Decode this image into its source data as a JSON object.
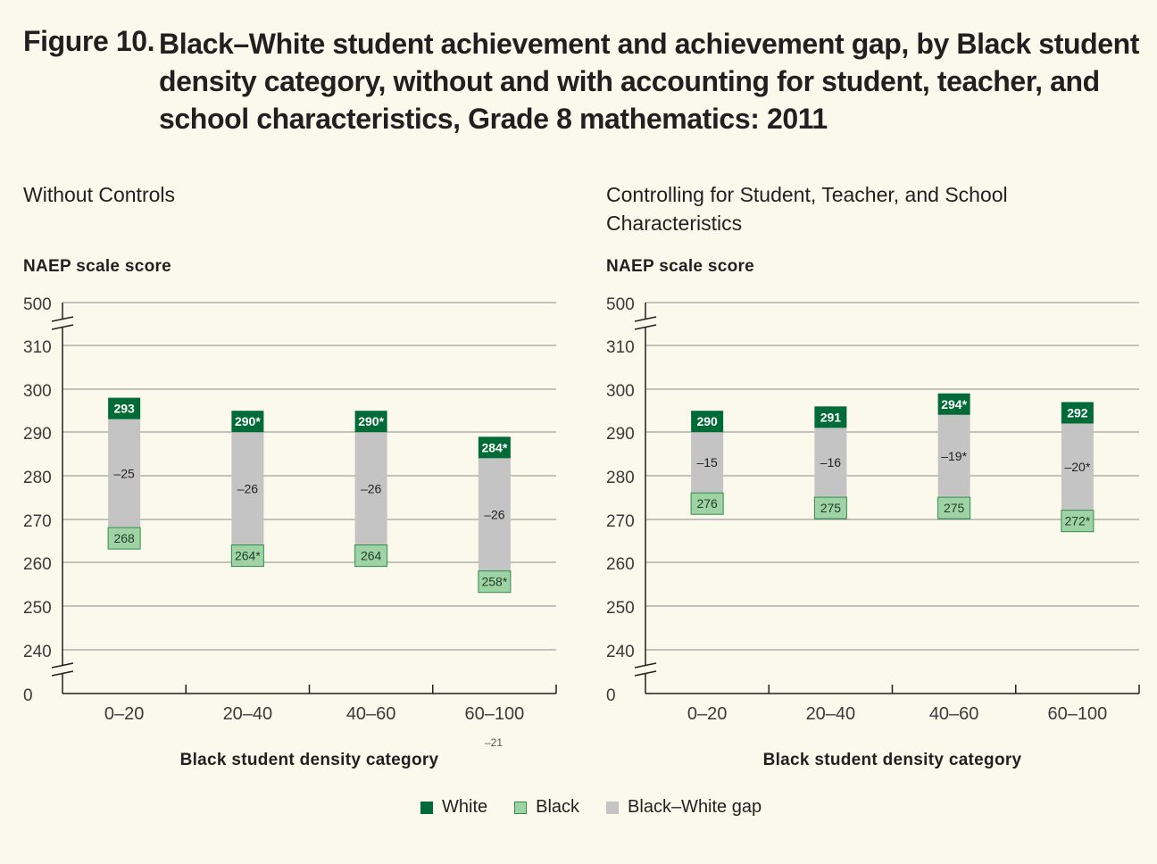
{
  "figure": {
    "label": "Figure 10.",
    "title": "Black–White student achievement and achievement gap, by Black student density category, without and with accounting for student, teacher, and school characteristics, Grade 8 mathematics: 2011"
  },
  "legend": [
    {
      "label": "White",
      "color": "#006b37"
    },
    {
      "label": "Black",
      "color": "#9fd3a5"
    },
    {
      "label": "Black–White gap",
      "color": "#c4c4c4"
    }
  ],
  "colors": {
    "white_box": "#006b37",
    "black_box": "#9fd3a5",
    "black_box_border": "#2f8f4a",
    "gap_bar": "#c4c4c4",
    "gridline": "#8a8a8a"
  },
  "stray_note": "–21",
  "chart_data": [
    {
      "type": "bar",
      "title": "Without Controls",
      "ylabel": "NAEP scale score",
      "xlabel": "Black student density category",
      "categories": [
        "0–20",
        "20–40",
        "40–60",
        "60–100"
      ],
      "yticks": [
        "500",
        "310",
        "300",
        "290",
        "280",
        "270",
        "260",
        "250",
        "240",
        "0"
      ],
      "ylim": [
        240,
        310
      ],
      "axis_breaks": "broken axis between 310 and 500, and between 0 and 240",
      "series": [
        {
          "name": "White",
          "values": [
            293,
            290,
            290,
            284
          ],
          "labels": [
            "293",
            "290*",
            "290*",
            "284*"
          ]
        },
        {
          "name": "Black",
          "values": [
            268,
            264,
            264,
            258
          ],
          "labels": [
            "268",
            "264*",
            "264",
            "258*"
          ]
        },
        {
          "name": "Black–White gap",
          "values": [
            -25,
            -26,
            -26,
            -26
          ],
          "labels": [
            "–25",
            "–26",
            "–26",
            "–26"
          ]
        }
      ]
    },
    {
      "type": "bar",
      "title": "Controlling for Student, Teacher, and School Characteristics",
      "ylabel": "NAEP scale score",
      "xlabel": "Black student density category",
      "categories": [
        "0–20",
        "20–40",
        "40–60",
        "60–100"
      ],
      "yticks": [
        "500",
        "310",
        "300",
        "290",
        "280",
        "270",
        "260",
        "250",
        "240",
        "0"
      ],
      "ylim": [
        240,
        310
      ],
      "axis_breaks": "broken axis between 310 and 500, and between 0 and 240",
      "series": [
        {
          "name": "White",
          "values": [
            290,
            291,
            294,
            292
          ],
          "labels": [
            "290",
            "291",
            "294*",
            "292"
          ]
        },
        {
          "name": "Black",
          "values": [
            276,
            275,
            275,
            272
          ],
          "labels": [
            "276",
            "275",
            "275",
            "272*"
          ]
        },
        {
          "name": "Black–White gap",
          "values": [
            -15,
            -16,
            -19,
            -20
          ],
          "labels": [
            "–15",
            "–16",
            "–19*",
            "–20*"
          ]
        }
      ]
    }
  ]
}
